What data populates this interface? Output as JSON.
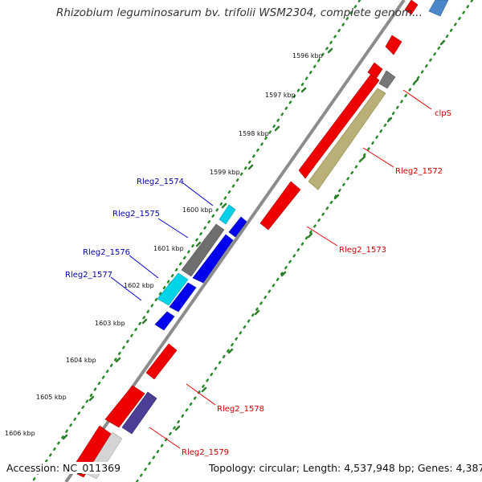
{
  "title": "Rhizobium leguminosarum bv. trifolii WSM2304, complete genom...",
  "footer": {
    "accession": "Accession: NC_011369",
    "summary": "Topology: circular; Length: 4,537,948 bp; Genes: 4,387"
  },
  "colors": {
    "backbone": "#8c8c8c",
    "forward_gene": "#ff0000",
    "reverse_gene": "#0000ff",
    "rna_gene": "#00d4e8",
    "pseudo_gene": "#707070",
    "highlight_olive": "#b8b076",
    "highlight_purple": "#4a3f94",
    "dotted_track": "#1f8a1f",
    "label_blue": "#0000aa",
    "label_red": "#cc0000",
    "leader_blue": "#0000dd",
    "leader_red": "#ee0000"
  },
  "scale_labels": [
    {
      "kbp": 1596,
      "text": "1596 kbp"
    },
    {
      "kbp": 1597,
      "text": "1597 kbp"
    },
    {
      "kbp": 1598,
      "text": "1598 kbp"
    },
    {
      "kbp": 1599,
      "text": "1599 kbp"
    },
    {
      "kbp": 1600,
      "text": "1600 kbp"
    },
    {
      "kbp": 1601,
      "text": "1601 kbp"
    },
    {
      "kbp": 1602,
      "text": "1602 kbp"
    },
    {
      "kbp": 1603,
      "text": "1603 kbp"
    },
    {
      "kbp": 1604,
      "text": "1604 kbp"
    },
    {
      "kbp": 1605,
      "text": "1605 kbp"
    },
    {
      "kbp": 1606,
      "text": "1606 kbp"
    }
  ],
  "gene_labels": [
    {
      "text": "clpS",
      "color": "red"
    },
    {
      "text": "Rleg2_1572",
      "color": "red"
    },
    {
      "text": "Rleg2_1573",
      "color": "red"
    },
    {
      "text": "Rleg2_1574",
      "color": "blue"
    },
    {
      "text": "Rleg2_1575",
      "color": "blue"
    },
    {
      "text": "Rleg2_1576",
      "color": "blue"
    },
    {
      "text": "Rleg2_1577",
      "color": "blue"
    },
    {
      "text": "Rleg2_1578",
      "color": "red"
    },
    {
      "text": "Rleg2_1579",
      "color": "red"
    }
  ]
}
